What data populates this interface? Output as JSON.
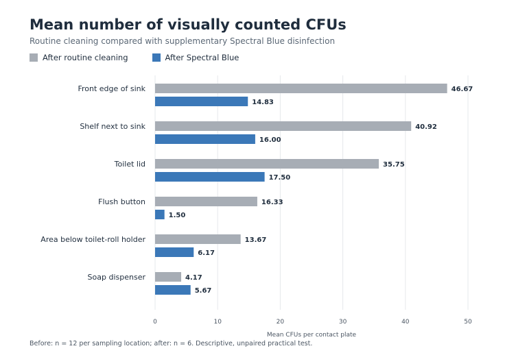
{
  "chart_data": {
    "type": "bar",
    "orientation": "horizontal",
    "title": "Mean number of visually counted CFUs",
    "subtitle": "Routine cleaning compared with supplementary Spectral Blue disinfection",
    "xlabel": "Mean CFUs per contact plate",
    "xlim": [
      0,
      50
    ],
    "xticks": [
      0,
      10,
      20,
      30,
      40,
      50
    ],
    "grid": true,
    "legend_position": "top-left",
    "categories": [
      "Front edge of sink",
      "Shelf next to sink",
      "Toilet lid",
      "Flush button",
      "Area below toilet-roll holder",
      "Soap dispenser"
    ],
    "series": [
      {
        "name": "After routine cleaning",
        "color": "#a7adb5",
        "values": [
          46.67,
          40.92,
          35.75,
          16.33,
          13.67,
          4.17
        ],
        "labels": [
          "46.67",
          "40.92",
          "35.75",
          "16.33",
          "13.67",
          "4.17"
        ]
      },
      {
        "name": "After Spectral Blue",
        "color": "#3b78b8",
        "values": [
          14.83,
          16.0,
          17.5,
          1.5,
          6.17,
          5.67
        ],
        "labels": [
          "14.83",
          "16.00",
          "17.50",
          "1.50",
          "6.17",
          "5.67"
        ]
      }
    ],
    "footnote": "Before: n = 12 per sampling location; after: n = 6. Descriptive, unpaired practical test."
  }
}
